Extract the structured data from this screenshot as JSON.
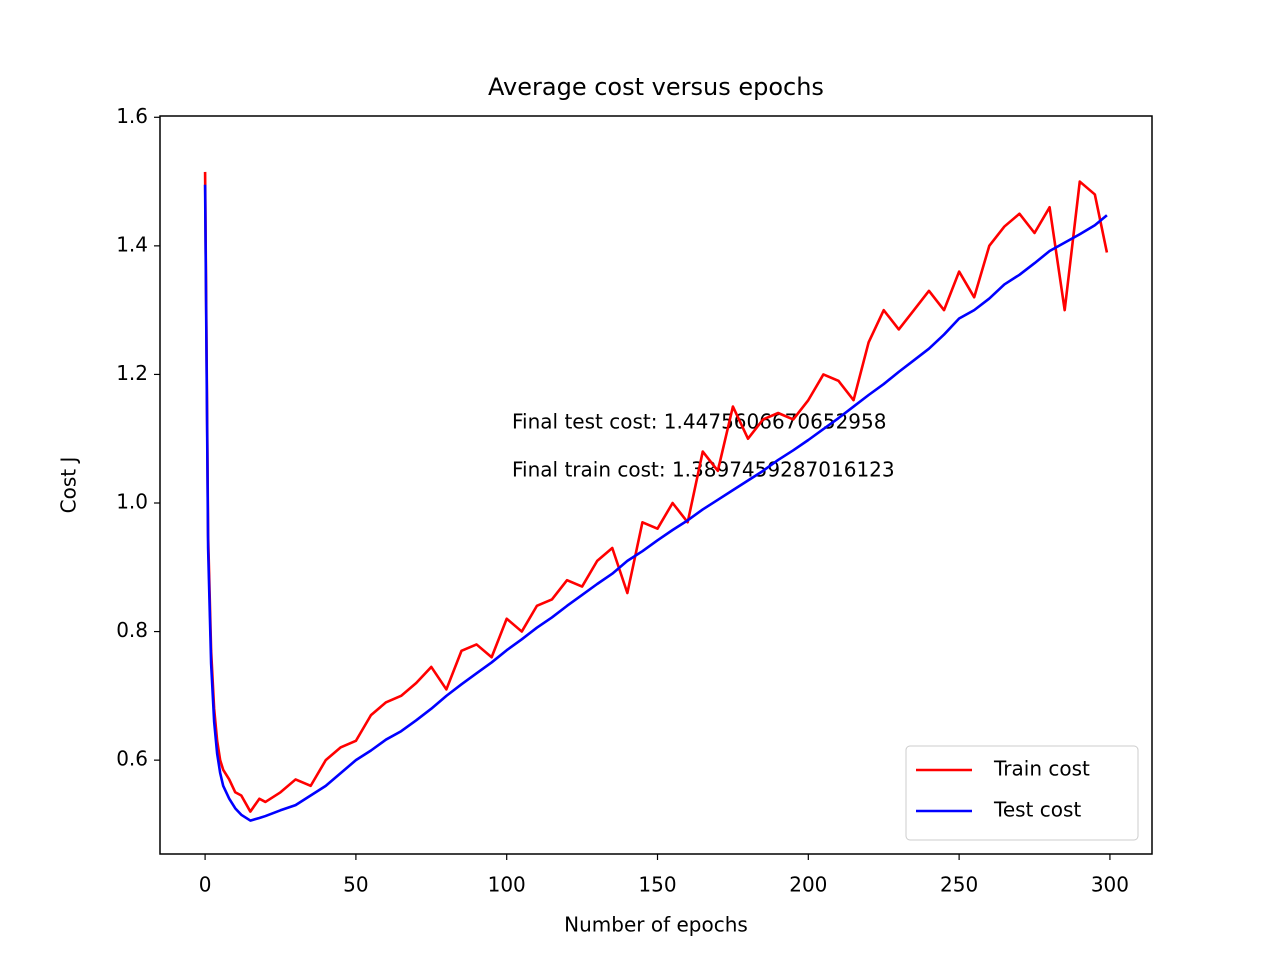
{
  "chart_data": {
    "type": "line",
    "title": "Average cost versus epochs",
    "xlabel": "Number of epochs",
    "ylabel": "Cost J",
    "x": [
      0,
      1,
      2,
      3,
      4,
      5,
      6,
      8,
      10,
      12,
      15,
      18,
      20,
      25,
      30,
      35,
      40,
      45,
      50,
      55,
      60,
      65,
      70,
      75,
      80,
      85,
      90,
      95,
      100,
      105,
      110,
      115,
      120,
      125,
      130,
      135,
      140,
      145,
      150,
      155,
      160,
      165,
      170,
      175,
      180,
      185,
      190,
      195,
      200,
      205,
      210,
      215,
      220,
      225,
      230,
      235,
      240,
      245,
      250,
      255,
      260,
      265,
      270,
      275,
      280,
      285,
      290,
      295,
      299
    ],
    "series": [
      {
        "name": "Train cost",
        "color": "#ff0000",
        "values": [
          1.515,
          0.95,
          0.77,
          0.68,
          0.63,
          0.6,
          0.585,
          0.57,
          0.55,
          0.545,
          0.52,
          0.54,
          0.535,
          0.55,
          0.57,
          0.56,
          0.6,
          0.62,
          0.63,
          0.67,
          0.69,
          0.7,
          0.72,
          0.745,
          0.71,
          0.77,
          0.78,
          0.76,
          0.82,
          0.8,
          0.84,
          0.85,
          0.88,
          0.87,
          0.91,
          0.93,
          0.86,
          0.97,
          0.96,
          1.0,
          0.97,
          1.08,
          1.05,
          1.15,
          1.1,
          1.13,
          1.14,
          1.13,
          1.16,
          1.2,
          1.19,
          1.16,
          1.25,
          1.3,
          1.27,
          1.3,
          1.33,
          1.3,
          1.36,
          1.32,
          1.4,
          1.43,
          1.45,
          1.42,
          1.46,
          1.3,
          1.5,
          1.48,
          1.3897
        ]
      },
      {
        "name": "Test cost",
        "color": "#0000ff",
        "values": [
          1.495,
          0.93,
          0.75,
          0.66,
          0.61,
          0.58,
          0.56,
          0.54,
          0.525,
          0.515,
          0.506,
          0.51,
          0.513,
          0.522,
          0.53,
          0.545,
          0.56,
          0.58,
          0.6,
          0.615,
          0.632,
          0.645,
          0.662,
          0.68,
          0.7,
          0.718,
          0.735,
          0.752,
          0.771,
          0.788,
          0.806,
          0.822,
          0.84,
          0.857,
          0.874,
          0.89,
          0.91,
          0.925,
          0.942,
          0.958,
          0.973,
          0.99,
          1.005,
          1.02,
          1.035,
          1.05,
          1.067,
          1.082,
          1.098,
          1.115,
          1.132,
          1.15,
          1.168,
          1.185,
          1.204,
          1.222,
          1.24,
          1.262,
          1.287,
          1.3,
          1.318,
          1.34,
          1.355,
          1.373,
          1.392,
          1.405,
          1.418,
          1.432,
          1.4476
        ]
      }
    ],
    "annotations": [
      "Final test cost: 1.4475606670652958",
      "Final train cost: 1.3897459287016123"
    ],
    "xlim": [
      -14.95,
      313.95
    ],
    "xticks": [
      0,
      50,
      100,
      150,
      200,
      250,
      300
    ],
    "ylim": [
      0.454,
      1.602
    ],
    "yticks": [
      0.6,
      0.8,
      {
        "value": 1,
        "label": "1.0"
      },
      1.2,
      1.4,
      1.6
    ],
    "legend": "lower right",
    "grid": false
  }
}
